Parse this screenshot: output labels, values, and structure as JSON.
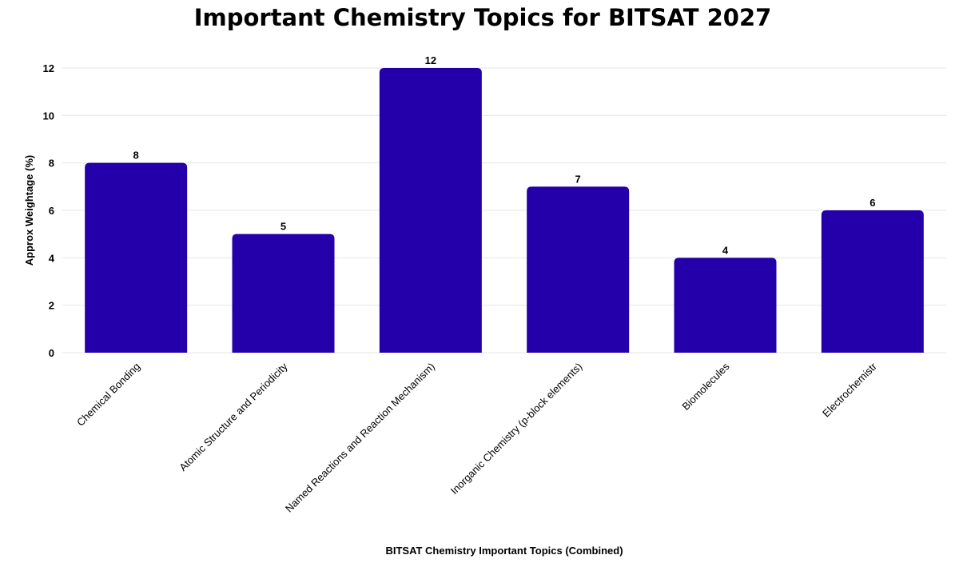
{
  "chart_data": {
    "type": "bar",
    "title": "Important Chemistry Topics for BITSAT 2027",
    "xlabel": "BITSAT Chemistry Important Topics (Combined)",
    "ylabel": "Approx Weightage (%)",
    "categories": [
      "Chemical Bonding",
      "Atomic Structure and Periodicity",
      "Named Reactions and Reaction Mechanism)",
      "Inorganic Chemistry (p-block elements)",
      "Biomolecules",
      "Electrochemistr"
    ],
    "values": [
      8,
      5,
      12,
      7,
      4,
      6
    ],
    "ylim": [
      0,
      12
    ],
    "yticks": [
      0,
      2,
      4,
      6,
      8,
      10,
      12
    ],
    "grid": true,
    "legend": "none",
    "bar_color": "#2400AA",
    "data_labels": true
  }
}
